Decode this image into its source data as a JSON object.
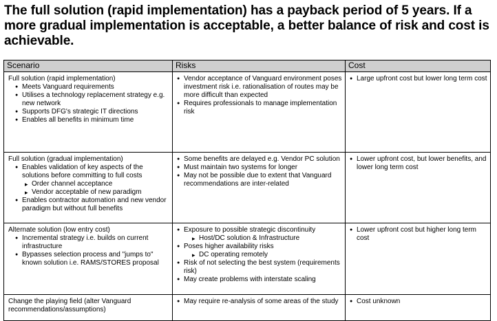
{
  "headline": "The full solution (rapid implementation) has a payback period of 5 years. If a more gradual implementation is acceptable, a better balance of risk and cost is achievable.",
  "table": {
    "headers": [
      "Scenario",
      "Risks",
      "Cost"
    ],
    "rows": [
      {
        "scenario": {
          "title": "Full solution (rapid implementation)",
          "bullets": [
            "Meets Vanguard requirements",
            "Utilises a technology replacement strategy e.g. new network",
            "Supports DFG's strategic IT directions",
            "Enables all benefits in minimum time"
          ]
        },
        "risks": [
          "Vendor acceptance of Vanguard environment poses investment risk i.e. rationalisation of routes may be more difficult than expected",
          "Requires professionals to manage implementation risk"
        ],
        "cost": [
          "Large upfront cost but lower long term cost"
        ]
      },
      {
        "scenario": {
          "title": "Full solution (gradual implementation)",
          "bullet1": "Enables validation of key aspects of the solutions before committing to full costs",
          "sub": [
            "Order channel acceptance",
            "Vendor acceptable of new paradigm"
          ],
          "bullet2": "Enables contractor automation and new vendor paradigm but without full benefits"
        },
        "risks": [
          "Some benefits are delayed e.g. Vendor PC solution",
          "Must maintain two systems for longer",
          "May not be possible due to  extent that Vanguard recommendations are inter-related"
        ],
        "cost": [
          "Lower upfront cost, but lower benefits, and lower long term cost"
        ]
      },
      {
        "scenario": {
          "title": "Alternate solution (low entry cost)",
          "bullets": [
            "Incremental strategy i.e. builds on current infrastructure",
            "Bypasses selection process and \"jumps to\" known solution i.e. RAMS/STORES proposal"
          ]
        },
        "risks": {
          "r1": "Exposure to possible strategic discontinuity",
          "r1_sub": "Host/DC  solution & Infrastructure",
          "r2": "Poses higher availability risks",
          "r2_sub": "DC operating remotely",
          "r3": "Risk of not selecting the best system (requirements risk)",
          "r4": "May create problems with interstate scaling"
        },
        "cost": [
          "Lower upfront cost but higher long term cost"
        ]
      },
      {
        "scenario": {
          "title": "Change the playing field (alter Vanguard recommendations/assumptions)"
        },
        "risks": [
          "May require re-analysis of some areas of the study"
        ],
        "cost": [
          "Cost unknown"
        ]
      }
    ]
  }
}
